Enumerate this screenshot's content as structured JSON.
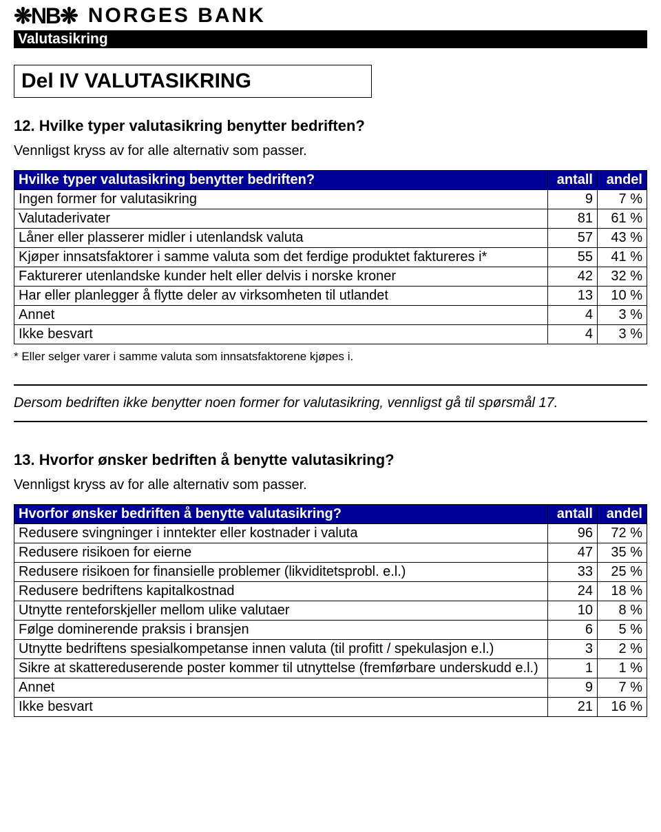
{
  "logo": {
    "symbol": "❋NB❋",
    "text": "NORGES BANK"
  },
  "black_bar": "Valutasikring",
  "title": "Del IV VALUTASIKRING",
  "q12": {
    "heading": "12. Hvilke typer valutasikring benytter bedriften?",
    "sub": "Vennligst kryss av for alle alternativ som passer.",
    "footnote": "* Eller selger varer i samme valuta som innsatsfaktorene kjøpes i."
  },
  "table12": {
    "header": {
      "label": "Hvilke typer valutasikring benytter bedriften?",
      "col1": "antall",
      "col2": "andel"
    },
    "rows": [
      {
        "label": "Ingen former for valutasikring",
        "n": "9",
        "p": "7 %"
      },
      {
        "label": "Valutaderivater",
        "n": "81",
        "p": "61 %"
      },
      {
        "label": "Låner eller plasserer midler i utenlandsk valuta",
        "n": "57",
        "p": "43 %"
      },
      {
        "label": "Kjøper innsatsfaktorer i samme valuta som det ferdige produktet faktureres i*",
        "n": "55",
        "p": "41 %"
      },
      {
        "label": "Fakturerer utenlandske kunder helt eller delvis i norske kroner",
        "n": "42",
        "p": "32 %"
      },
      {
        "label": "Har eller planlegger å flytte deler av virksomheten til utlandet",
        "n": "13",
        "p": "10 %"
      },
      {
        "label": "Annet",
        "n": "4",
        "p": "3 %"
      },
      {
        "label": "Ikke besvart",
        "n": "4",
        "p": "3 %"
      }
    ]
  },
  "skip_note": "Dersom bedriften ikke benytter noen former for valutasikring, vennligst gå til spørsmål 17.",
  "q13": {
    "heading": "13. Hvorfor ønsker bedriften å benytte valutasikring?",
    "sub": "Vennligst kryss av for alle alternativ som passer."
  },
  "table13": {
    "header": {
      "label": "Hvorfor ønsker bedriften å benytte valutasikring?",
      "col1": "antall",
      "col2": "andel"
    },
    "rows": [
      {
        "label": "Redusere svingninger i inntekter eller kostnader i valuta",
        "n": "96",
        "p": "72 %"
      },
      {
        "label": "Redusere risikoen for eierne",
        "n": "47",
        "p": "35 %"
      },
      {
        "label": "Redusere risikoen for finansielle problemer (likviditetsprobl. e.l.)",
        "n": "33",
        "p": "25 %"
      },
      {
        "label": "Redusere bedriftens kapitalkostnad",
        "n": "24",
        "p": "18 %"
      },
      {
        "label": "Utnytte renteforskjeller mellom ulike valutaer",
        "n": "10",
        "p": "8 %"
      },
      {
        "label": "Følge dominerende praksis i bransjen",
        "n": "6",
        "p": "5 %"
      },
      {
        "label": "Utnytte bedriftens spesialkompetanse innen valuta (til profitt / spekulasjon e.l.)",
        "n": "3",
        "p": "2 %"
      },
      {
        "label": "Sikre at skattereduserende poster kommer til utnyttelse (fremførbare underskudd e.l.)",
        "n": "1",
        "p": "1 %"
      },
      {
        "label": "Annet",
        "n": "9",
        "p": "7 %"
      },
      {
        "label": "Ikke besvart",
        "n": "21",
        "p": "16 %"
      }
    ]
  }
}
